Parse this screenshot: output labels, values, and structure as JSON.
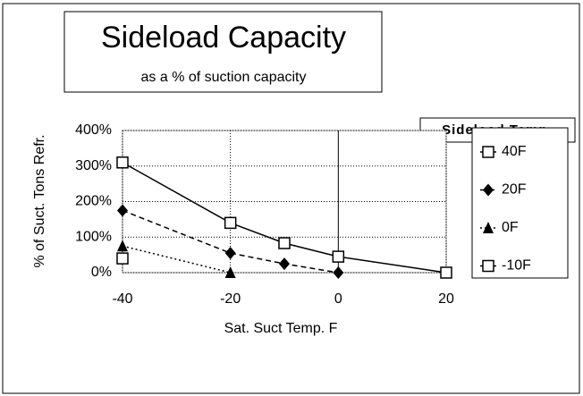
{
  "chart_data": {
    "type": "line",
    "title": "Sideload Capacity",
    "subtitle": "as a % of suction capacity",
    "legend_title": "Sideload Temp.",
    "xlabel": "Sat. Suct Temp. F",
    "ylabel": "% of Suct. Tons Refr.",
    "x": [
      -40,
      -20,
      -10,
      0,
      20
    ],
    "series": [
      {
        "name": "40F",
        "color": "#000000",
        "marker": "square-open",
        "line_style": "solid",
        "values": [
          310,
          140,
          83,
          45,
          0
        ]
      },
      {
        "name": "20F",
        "color": "#000000",
        "marker": "diamond",
        "line_style": "dashed",
        "values": [
          175,
          55,
          25,
          0,
          null
        ]
      },
      {
        "name": "0F",
        "color": "#000000",
        "marker": "triangle",
        "line_style": "dotted",
        "values": [
          75,
          0,
          null,
          null,
          null
        ]
      },
      {
        "name": "-10F",
        "color": "#000000",
        "marker": "square-open",
        "line_style": "none",
        "values": [
          40,
          null,
          null,
          null,
          null
        ]
      }
    ],
    "xlim": [
      -40,
      20
    ],
    "xticks": [
      -40,
      -20,
      0,
      20
    ],
    "ylim": [
      0,
      400
    ],
    "yticks": [
      {
        "value": 0,
        "label": "0%"
      },
      {
        "value": 100,
        "label": "100%"
      },
      {
        "value": 200,
        "label": "200%"
      },
      {
        "value": 300,
        "label": "300%"
      },
      {
        "value": 400,
        "label": "400%"
      }
    ],
    "grid": true,
    "legend": "right"
  }
}
